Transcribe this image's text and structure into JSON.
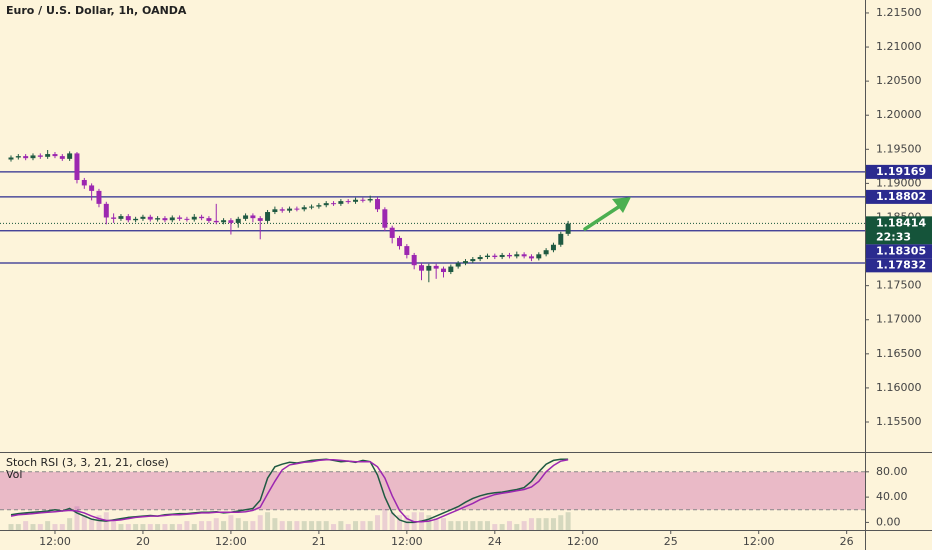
{
  "chart_data": [
    {
      "type": "candlestick",
      "title": "Euro / U.S. Dollar, 1h, OANDA",
      "x": [
        6,
        7,
        8,
        9,
        10,
        11,
        12,
        13,
        14,
        15,
        16,
        17,
        18,
        19,
        20,
        21,
        22,
        23,
        24,
        25,
        26,
        27,
        28,
        29,
        30,
        31,
        32,
        33,
        34,
        35,
        36,
        37,
        38,
        39,
        40,
        41,
        42,
        43,
        44,
        45,
        46,
        47,
        48,
        49,
        50,
        51,
        52,
        53,
        54,
        55,
        56,
        57,
        58,
        59,
        60,
        61,
        62,
        63,
        64,
        65,
        66,
        67,
        68,
        69,
        70,
        71,
        72,
        73,
        74,
        75,
        76,
        77,
        78,
        79,
        80,
        81,
        82
      ],
      "open": [
        1.1935,
        1.1938,
        1.194,
        1.1937,
        1.1941,
        1.1939,
        1.1943,
        1.194,
        1.1936,
        1.1944,
        1.1905,
        1.1897,
        1.1889,
        1.187,
        1.185,
        1.1848,
        1.1852,
        1.1846,
        1.1848,
        1.1851,
        1.1847,
        1.1849,
        1.1846,
        1.185,
        1.1848,
        1.1847,
        1.1851,
        1.1849,
        1.1845,
        1.1843,
        1.1846,
        1.1842,
        1.1848,
        1.1853,
        1.1849,
        1.1845,
        1.1858,
        1.1862,
        1.186,
        1.1863,
        1.1862,
        1.1865,
        1.1866,
        1.1868,
        1.1871,
        1.187,
        1.1874,
        1.1873,
        1.1876,
        1.1875,
        1.1877,
        1.1862,
        1.1835,
        1.182,
        1.1808,
        1.1795,
        1.178,
        1.1772,
        1.1779,
        1.1775,
        1.177,
        1.1778,
        1.1783,
        1.1786,
        1.1789,
        1.1792,
        1.1794,
        1.1792,
        1.1795,
        1.1793,
        1.1796,
        1.1793,
        1.179,
        1.1796,
        1.1802,
        1.181,
        1.1826
      ],
      "high": [
        1.1941,
        1.1943,
        1.1943,
        1.1944,
        1.1944,
        1.1949,
        1.1946,
        1.1943,
        1.1947,
        1.1946,
        1.1908,
        1.19,
        1.1892,
        1.1873,
        1.1856,
        1.1855,
        1.1855,
        1.1851,
        1.1854,
        1.1854,
        1.1852,
        1.1852,
        1.1853,
        1.1853,
        1.1851,
        1.1855,
        1.1854,
        1.1852,
        1.187,
        1.1849,
        1.1849,
        1.1851,
        1.1856,
        1.1856,
        1.1852,
        1.1861,
        1.1866,
        1.1865,
        1.1866,
        1.1866,
        1.1868,
        1.1869,
        1.1871,
        1.1874,
        1.1874,
        1.1877,
        1.1877,
        1.1879,
        1.1879,
        1.1882,
        1.188,
        1.1865,
        1.1838,
        1.1823,
        1.1811,
        1.1798,
        1.1783,
        1.1782,
        1.1782,
        1.1778,
        1.1781,
        1.1786,
        1.1789,
        1.1792,
        1.1795,
        1.1797,
        1.1797,
        1.1798,
        1.1798,
        1.18,
        1.1799,
        1.1796,
        1.1799,
        1.1805,
        1.1813,
        1.1829,
        1.1845
      ],
      "low": [
        1.1932,
        1.1935,
        1.1934,
        1.1934,
        1.1936,
        1.1936,
        1.1937,
        1.1933,
        1.1933,
        1.19,
        1.1892,
        1.1875,
        1.1865,
        1.184,
        1.1842,
        1.1845,
        1.1843,
        1.1843,
        1.1845,
        1.1844,
        1.1844,
        1.1843,
        1.1843,
        1.1845,
        1.1844,
        1.1844,
        1.1846,
        1.1842,
        1.184,
        1.184,
        1.1825,
        1.1835,
        1.1845,
        1.1843,
        1.1818,
        1.1842,
        1.1855,
        1.1857,
        1.1857,
        1.1859,
        1.1859,
        1.1862,
        1.1863,
        1.1865,
        1.1867,
        1.1867,
        1.187,
        1.187,
        1.1872,
        1.1872,
        1.1858,
        1.183,
        1.1812,
        1.1803,
        1.179,
        1.1774,
        1.1758,
        1.1755,
        1.176,
        1.1762,
        1.1767,
        1.1775,
        1.178,
        1.1783,
        1.1786,
        1.1789,
        1.1789,
        1.1789,
        1.179,
        1.179,
        1.179,
        1.1786,
        1.1787,
        1.1793,
        1.1799,
        1.1807,
        1.1823
      ],
      "close": [
        1.1938,
        1.194,
        1.1937,
        1.1941,
        1.1939,
        1.1943,
        1.194,
        1.1936,
        1.1944,
        1.1905,
        1.1897,
        1.1889,
        1.187,
        1.185,
        1.1848,
        1.1852,
        1.1846,
        1.1848,
        1.1851,
        1.1847,
        1.1849,
        1.1846,
        1.185,
        1.1848,
        1.1847,
        1.1851,
        1.1849,
        1.1845,
        1.1843,
        1.1846,
        1.1842,
        1.1848,
        1.1853,
        1.1849,
        1.1845,
        1.1858,
        1.1862,
        1.186,
        1.1863,
        1.1862,
        1.1865,
        1.1866,
        1.1868,
        1.1871,
        1.187,
        1.1874,
        1.1873,
        1.1876,
        1.1875,
        1.1877,
        1.1862,
        1.1835,
        1.182,
        1.1808,
        1.1795,
        1.178,
        1.1772,
        1.1779,
        1.1775,
        1.177,
        1.1778,
        1.1783,
        1.1786,
        1.1789,
        1.1792,
        1.1794,
        1.1792,
        1.1795,
        1.1793,
        1.1796,
        1.1793,
        1.179,
        1.1796,
        1.1802,
        1.181,
        1.1826,
        1.1841
      ],
      "up_color": "#1f5a42",
      "down_color": "#9c27b0",
      "xlim": [
        4.5,
        122.5
      ],
      "xticks": [
        {
          "value": 12,
          "label": "12:00"
        },
        {
          "value": 24,
          "label": "20"
        },
        {
          "value": 36,
          "label": "12:00"
        },
        {
          "value": 48,
          "label": "21"
        },
        {
          "value": 60,
          "label": "12:00"
        },
        {
          "value": 72,
          "label": "24"
        },
        {
          "value": 84,
          "label": "12:00"
        },
        {
          "value": 96,
          "label": "25"
        },
        {
          "value": 108,
          "label": "12:00"
        },
        {
          "value": 120,
          "label": "26"
        }
      ],
      "ylim": [
        1.1506,
        1.2169
      ],
      "yticks": [
        {
          "value": 1.215,
          "label": "1.21500"
        },
        {
          "value": 1.21,
          "label": "1.21000"
        },
        {
          "value": 1.205,
          "label": "1.20500"
        },
        {
          "value": 1.2,
          "label": "1.20000"
        },
        {
          "value": 1.195,
          "label": "1.19500"
        },
        {
          "value": 1.19,
          "label": "1.19000"
        },
        {
          "value": 1.185,
          "label": "1.18500"
        },
        {
          "value": 1.18,
          "label": "1.18000"
        },
        {
          "value": 1.175,
          "label": "1.17500"
        },
        {
          "value": 1.17,
          "label": "1.17000"
        },
        {
          "value": 1.165,
          "label": "1.16500"
        },
        {
          "value": 1.16,
          "label": "1.16000"
        },
        {
          "value": 1.155,
          "label": "1.15500"
        }
      ],
      "levels": [
        1.19169,
        1.18802,
        1.18305,
        1.17832
      ],
      "level_color": "#2b2b8f",
      "last_price": 1.18414,
      "countdown": "22:33",
      "last_price_color": "#15543a"
    },
    {
      "type": "line",
      "title": "Stoch RSI (3, 3, 21, 21, close)",
      "series": [
        {
          "color": "#1f5a42",
          "values": [
            12,
            14,
            15,
            16,
            17,
            18,
            20,
            18,
            22,
            15,
            10,
            5,
            3,
            2,
            4,
            6,
            8,
            9,
            10,
            11,
            10,
            12,
            13,
            14,
            14,
            15,
            16,
            16,
            17,
            15,
            16,
            18,
            20,
            22,
            35,
            70,
            88,
            92,
            95,
            94,
            96,
            98,
            99,
            100,
            98,
            96,
            97,
            95,
            98,
            96,
            75,
            40,
            15,
            4,
            0,
            0,
            2,
            5,
            10,
            15,
            20,
            25,
            32,
            38,
            42,
            45,
            47,
            48,
            50,
            52,
            55,
            65,
            80,
            92,
            98,
            100,
            100
          ]
        },
        {
          "color": "#9c27b0",
          "values": [
            10,
            12,
            13,
            14,
            15,
            16,
            17,
            18,
            19,
            18,
            15,
            10,
            6,
            3,
            3,
            4,
            6,
            8,
            9,
            10,
            10,
            11,
            12,
            12,
            13,
            14,
            15,
            15,
            16,
            16,
            16,
            16,
            17,
            19,
            24,
            45,
            65,
            83,
            91,
            93,
            95,
            96,
            98,
            99,
            99,
            98,
            97,
            96,
            96,
            96,
            88,
            70,
            42,
            19,
            6,
            1,
            1,
            2,
            5,
            10,
            15,
            20,
            25,
            30,
            36,
            40,
            44,
            46,
            48,
            50,
            52,
            56,
            65,
            80,
            90,
            97,
            99
          ]
        }
      ],
      "ylim": [
        -12,
        105
      ],
      "yticks": [
        {
          "value": 80,
          "label": "80.00"
        },
        {
          "value": 40,
          "label": "40.00"
        },
        {
          "value": 0,
          "label": "0.00"
        }
      ],
      "bands": [
        20,
        80
      ],
      "band_color": "#e8b4c4",
      "volume_label": "Vol",
      "volume": [
        2,
        2,
        3,
        2,
        2,
        3,
        2,
        2,
        4,
        8,
        5,
        4,
        5,
        6,
        3,
        2,
        2,
        2,
        2,
        2,
        2,
        2,
        2,
        2,
        3,
        2,
        3,
        3,
        4,
        3,
        5,
        4,
        3,
        3,
        5,
        6,
        4,
        3,
        3,
        3,
        3,
        3,
        3,
        3,
        2,
        3,
        2,
        3,
        3,
        3,
        5,
        7,
        6,
        5,
        5,
        6,
        6,
        5,
        4,
        4,
        3,
        3,
        3,
        3,
        3,
        3,
        2,
        2,
        3,
        2,
        3,
        4,
        4,
        4,
        4,
        5,
        6
      ],
      "volume_ylim": [
        0,
        25
      ]
    }
  ]
}
